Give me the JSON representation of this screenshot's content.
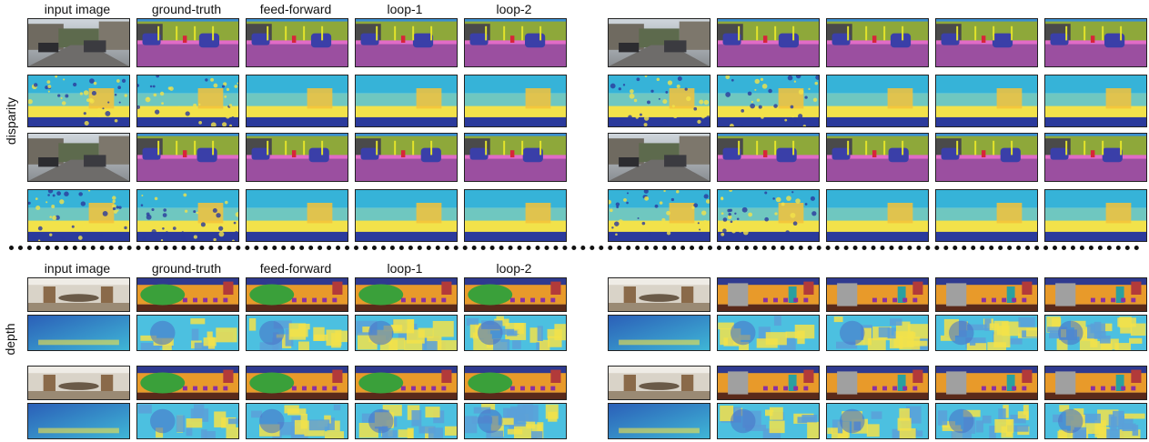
{
  "sections": [
    {
      "label": "disparity",
      "columns": [
        "input image",
        "ground-truth",
        "feed-forward",
        "loop-1",
        "loop-2"
      ]
    },
    {
      "label": "depth",
      "columns": [
        "input image",
        "ground-truth",
        "feed-forward",
        "loop-1",
        "loop-2"
      ]
    }
  ],
  "colors": {
    "road": "#9b4fa0",
    "vegetation": "#8ea83a",
    "sky": "#3a8fd0",
    "car": "#3a3fa8",
    "building": "#4a4a4a",
    "sidewalk": "#e06bc7",
    "person": "#d8243a",
    "sign": "#e4e42a",
    "floor": "#5a2a1a",
    "wall": "#e89a2a",
    "ceiling": "#2f3a8f",
    "table": "#3aa03a",
    "chair": "#8a30a0",
    "door": "#a0a0a0",
    "depth_far": "#2b3a9c",
    "depth_mid": "#36b3d8",
    "depth_near": "#f2e24a",
    "depth_close": "#f5c23a"
  }
}
